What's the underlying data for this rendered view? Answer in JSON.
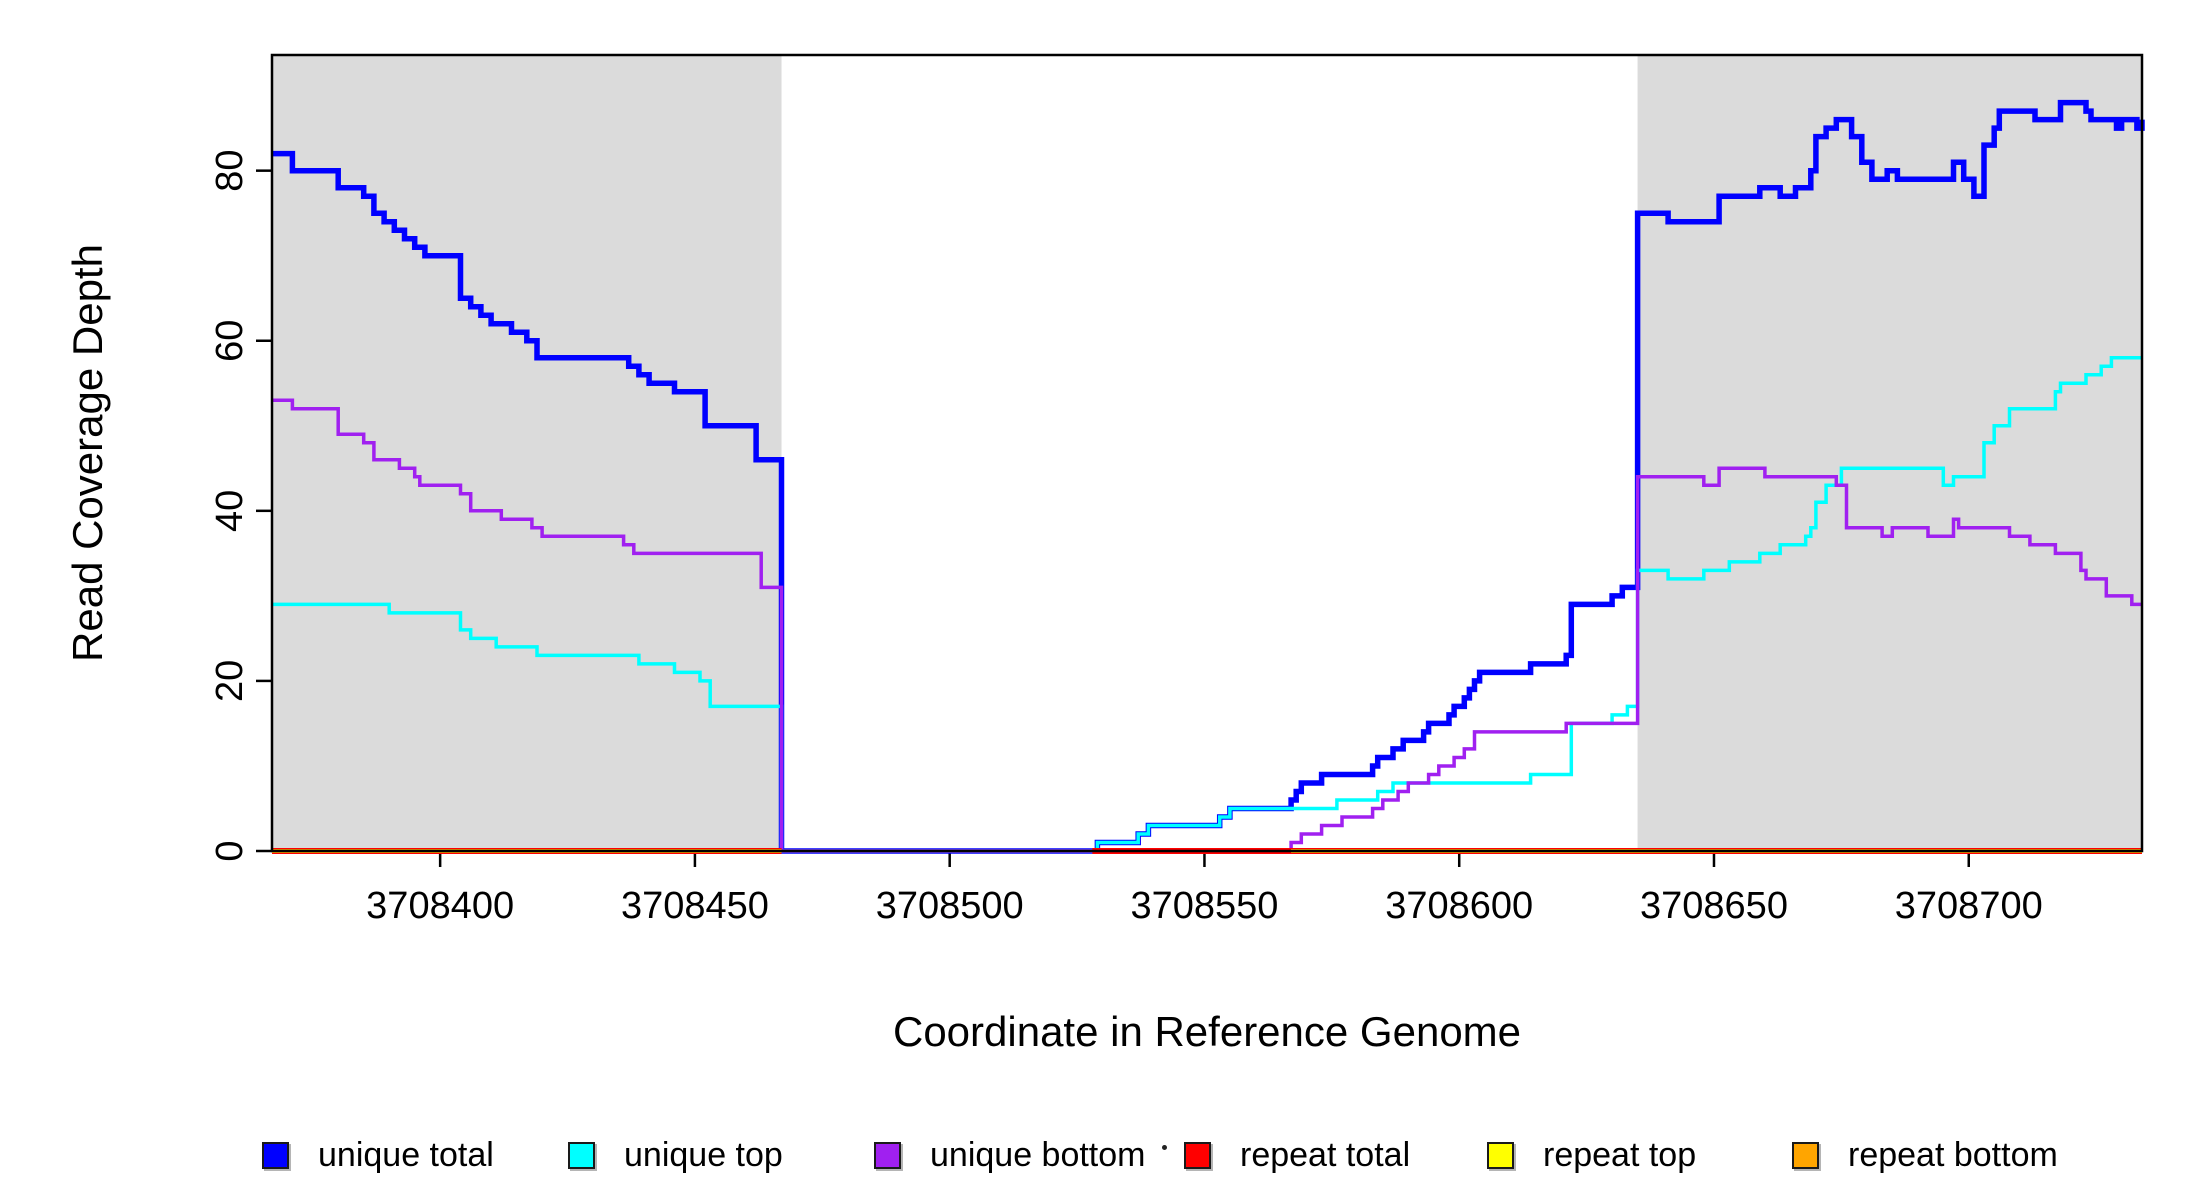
{
  "page": {
    "background": "#ffffff"
  },
  "axes": {
    "x_title": "Coordinate in Reference Genome",
    "y_title": "Read Coverage Depth",
    "x_tick_labels": [
      "3708400",
      "3708450",
      "3708500",
      "3708550",
      "3708600",
      "3708650",
      "3708700"
    ],
    "y_tick_labels": [
      "0",
      "20",
      "40",
      "60",
      "80"
    ]
  },
  "legend": {
    "items": [
      {
        "label": "unique total",
        "color": "#0000FF"
      },
      {
        "label": "unique top",
        "color": "#00FFFF"
      },
      {
        "label": "unique bottom",
        "color": "#A020F0"
      },
      {
        "label": "repeat total",
        "color": "#FF0000"
      },
      {
        "label": "repeat top",
        "color": "#FFFF00"
      },
      {
        "label": "repeat bottom",
        "color": "#FFA500"
      }
    ]
  },
  "chart_data": {
    "type": "line",
    "step": true,
    "title": "",
    "xlabel": "Coordinate in Reference Genome",
    "ylabel": "Read Coverage Depth",
    "xlim": [
      3708367,
      3708734
    ],
    "ylim": [
      0,
      93.6
    ],
    "x_ticks": [
      3708400,
      3708450,
      3708500,
      3708550,
      3708600,
      3708650,
      3708700
    ],
    "y_ticks": [
      0,
      20,
      40,
      60,
      80
    ],
    "grid": false,
    "legend_position": "bottom",
    "background_color": "#ffffff",
    "shaded_regions": [
      {
        "x_from": 3708367,
        "x_to": 3708467,
        "color": "#DBDBDB"
      },
      {
        "x_from": 3708635,
        "x_to": 3708734,
        "color": "#DBDBDB"
      }
    ],
    "series": [
      {
        "name": "unique total",
        "color": "#0000FF",
        "line_width": 5.5,
        "points": [
          [
            3708367,
            82
          ],
          [
            3708371,
            80
          ],
          [
            3708380,
            78
          ],
          [
            3708385,
            77
          ],
          [
            3708387,
            75
          ],
          [
            3708389,
            74
          ],
          [
            3708391,
            73
          ],
          [
            3708393,
            72
          ],
          [
            3708395,
            71
          ],
          [
            3708397,
            70
          ],
          [
            3708404,
            65
          ],
          [
            3708406,
            64
          ],
          [
            3708408,
            63
          ],
          [
            3708410,
            62
          ],
          [
            3708414,
            61
          ],
          [
            3708417,
            60
          ],
          [
            3708419,
            58
          ],
          [
            3708437,
            57
          ],
          [
            3708439,
            56
          ],
          [
            3708441,
            55
          ],
          [
            3708446,
            54
          ],
          [
            3708452,
            50
          ],
          [
            3708462,
            46
          ],
          [
            3708467,
            0
          ],
          [
            3708529,
            1
          ],
          [
            3708537,
            2
          ],
          [
            3708539,
            3
          ],
          [
            3708553,
            4
          ],
          [
            3708555,
            5
          ],
          [
            3708567,
            6
          ],
          [
            3708568,
            7
          ],
          [
            3708569,
            8
          ],
          [
            3708573,
            9
          ],
          [
            3708583,
            10
          ],
          [
            3708584,
            11
          ],
          [
            3708587,
            12
          ],
          [
            3708589,
            13
          ],
          [
            3708593,
            14
          ],
          [
            3708594,
            15
          ],
          [
            3708598,
            16
          ],
          [
            3708599,
            17
          ],
          [
            3708601,
            18
          ],
          [
            3708602,
            19
          ],
          [
            3708603,
            20
          ],
          [
            3708604,
            21
          ],
          [
            3708614,
            22
          ],
          [
            3708621,
            23
          ],
          [
            3708622,
            29
          ],
          [
            3708630,
            30
          ],
          [
            3708632,
            31
          ],
          [
            3708635,
            75
          ],
          [
            3708641,
            74
          ],
          [
            3708651,
            77
          ],
          [
            3708659,
            78
          ],
          [
            3708663,
            77
          ],
          [
            3708666,
            78
          ],
          [
            3708669,
            80
          ],
          [
            3708670,
            84
          ],
          [
            3708672,
            85
          ],
          [
            3708674,
            86
          ],
          [
            3708677,
            84
          ],
          [
            3708679,
            81
          ],
          [
            3708681,
            79
          ],
          [
            3708684,
            80
          ],
          [
            3708686,
            79
          ],
          [
            3708697,
            81
          ],
          [
            3708699,
            79
          ],
          [
            3708701,
            77
          ],
          [
            3708703,
            83
          ],
          [
            3708705,
            85
          ],
          [
            3708706,
            87
          ],
          [
            3708713,
            86
          ],
          [
            3708718,
            88
          ],
          [
            3708723,
            87
          ],
          [
            3708724,
            86
          ],
          [
            3708729,
            85
          ],
          [
            3708730,
            86
          ],
          [
            3708733,
            85
          ],
          [
            3708734,
            86
          ]
        ]
      },
      {
        "name": "unique top",
        "color": "#00FFFF",
        "line_width": 3.5,
        "points": [
          [
            3708367,
            29
          ],
          [
            3708390,
            28
          ],
          [
            3708404,
            26
          ],
          [
            3708406,
            25
          ],
          [
            3708411,
            24
          ],
          [
            3708419,
            23
          ],
          [
            3708439,
            22
          ],
          [
            3708446,
            21
          ],
          [
            3708451,
            20
          ],
          [
            3708453,
            17
          ],
          [
            3708467,
            0
          ],
          [
            3708529,
            1
          ],
          [
            3708537,
            2
          ],
          [
            3708539,
            3
          ],
          [
            3708553,
            4
          ],
          [
            3708555,
            5
          ],
          [
            3708576,
            6
          ],
          [
            3708584,
            7
          ],
          [
            3708587,
            8
          ],
          [
            3708614,
            9
          ],
          [
            3708622,
            15
          ],
          [
            3708630,
            16
          ],
          [
            3708633,
            17
          ],
          [
            3708635,
            33
          ],
          [
            3708641,
            32
          ],
          [
            3708648,
            33
          ],
          [
            3708653,
            34
          ],
          [
            3708659,
            35
          ],
          [
            3708663,
            36
          ],
          [
            3708668,
            37
          ],
          [
            3708669,
            38
          ],
          [
            3708670,
            41
          ],
          [
            3708672,
            43
          ],
          [
            3708675,
            45
          ],
          [
            3708695,
            43
          ],
          [
            3708697,
            44
          ],
          [
            3708703,
            48
          ],
          [
            3708705,
            50
          ],
          [
            3708708,
            52
          ],
          [
            3708717,
            54
          ],
          [
            3708718,
            55
          ],
          [
            3708723,
            56
          ],
          [
            3708726,
            57
          ],
          [
            3708728,
            58
          ]
        ]
      },
      {
        "name": "unique bottom",
        "color": "#A020F0",
        "line_width": 3.5,
        "points": [
          [
            3708367,
            53
          ],
          [
            3708371,
            52
          ],
          [
            3708380,
            49
          ],
          [
            3708385,
            48
          ],
          [
            3708387,
            46
          ],
          [
            3708392,
            45
          ],
          [
            3708395,
            44
          ],
          [
            3708396,
            43
          ],
          [
            3708404,
            42
          ],
          [
            3708406,
            40
          ],
          [
            3708412,
            39
          ],
          [
            3708418,
            38
          ],
          [
            3708420,
            37
          ],
          [
            3708436,
            36
          ],
          [
            3708438,
            35
          ],
          [
            3708463,
            31
          ],
          [
            3708467,
            0
          ],
          [
            3708567,
            1
          ],
          [
            3708569,
            2
          ],
          [
            3708573,
            3
          ],
          [
            3708577,
            4
          ],
          [
            3708583,
            5
          ],
          [
            3708585,
            6
          ],
          [
            3708588,
            7
          ],
          [
            3708590,
            8
          ],
          [
            3708594,
            9
          ],
          [
            3708596,
            10
          ],
          [
            3708599,
            11
          ],
          [
            3708601,
            12
          ],
          [
            3708603,
            14
          ],
          [
            3708621,
            15
          ],
          [
            3708635,
            44
          ],
          [
            3708648,
            43
          ],
          [
            3708651,
            45
          ],
          [
            3708660,
            44
          ],
          [
            3708674,
            43
          ],
          [
            3708676,
            38
          ],
          [
            3708683,
            37
          ],
          [
            3708685,
            38
          ],
          [
            3708692,
            37
          ],
          [
            3708697,
            39
          ],
          [
            3708698,
            38
          ],
          [
            3708708,
            37
          ],
          [
            3708712,
            36
          ],
          [
            3708717,
            35
          ],
          [
            3708722,
            33
          ],
          [
            3708723,
            32
          ],
          [
            3708727,
            30
          ],
          [
            3708732,
            29
          ]
        ]
      },
      {
        "name": "repeat total",
        "color": "#FF0000",
        "line_width": 6,
        "value": 0,
        "zero_segments": [
          [
            3708367,
            3708467
          ],
          [
            3708528,
            3708734
          ]
        ]
      },
      {
        "name": "repeat top",
        "color": "#FFFF00",
        "line_width": 3,
        "value": 0,
        "zero_segments": [
          [
            3708367,
            3708467
          ],
          [
            3708567,
            3708734
          ]
        ]
      },
      {
        "name": "repeat bottom",
        "color": "#FFA500",
        "line_width": 4,
        "value": 0,
        "zero_segments": [
          [
            3708367,
            3708467
          ],
          [
            3708567,
            3708734
          ]
        ]
      }
    ]
  }
}
